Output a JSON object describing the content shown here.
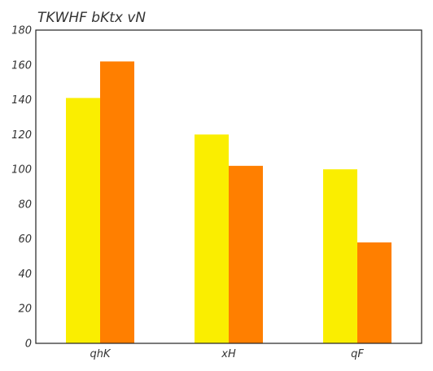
{
  "chart_data": {
    "type": "bar",
    "title": "TKWHF bKtx vN",
    "xlabel": "",
    "ylabel": "",
    "categories": [
      "qhK",
      "xH",
      "qF"
    ],
    "series": [
      {
        "values": [
          141,
          120,
          100
        ],
        "color": "#FAEE00"
      },
      {
        "values": [
          162,
          102,
          58
        ],
        "color": "#FF7F00"
      }
    ],
    "ylim": [
      0,
      180
    ],
    "yticks": [
      0,
      20,
      40,
      60,
      80,
      100,
      120,
      140,
      160,
      180
    ],
    "grid": false,
    "legend": "none"
  }
}
